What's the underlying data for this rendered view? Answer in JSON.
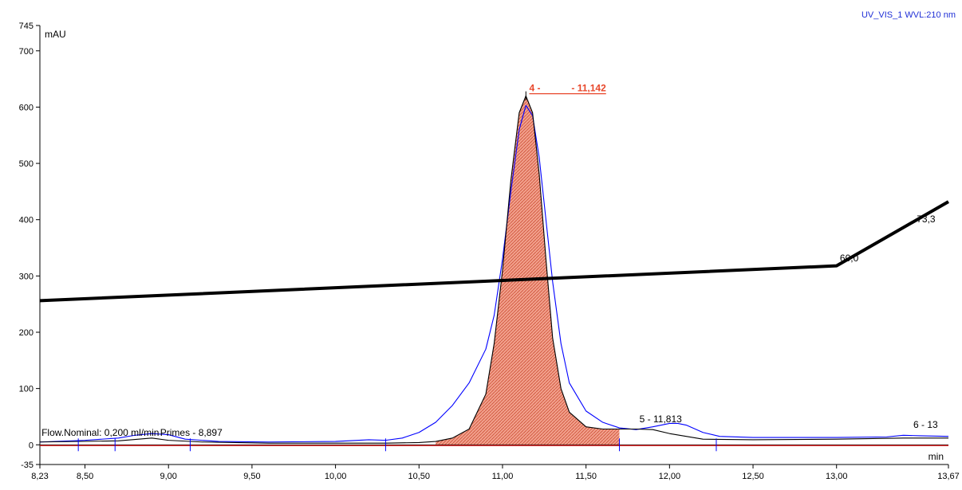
{
  "chart_data": {
    "type": "line",
    "title": "UV_VIS_1 WVL:210 nm",
    "xlabel": "min",
    "ylabel": "mAU",
    "xlim": [
      8.23,
      13.67
    ],
    "ylim": [
      -35,
      745
    ],
    "x_ticks": [
      {
        "value": 8.23,
        "label": "8,23"
      },
      {
        "value": 8.5,
        "label": "8,50"
      },
      {
        "value": 9.0,
        "label": "9,00"
      },
      {
        "value": 9.5,
        "label": "9,50"
      },
      {
        "value": 10.0,
        "label": "10,00"
      },
      {
        "value": 10.5,
        "label": "10,50"
      },
      {
        "value": 11.0,
        "label": "11,00"
      },
      {
        "value": 11.5,
        "label": "11,50"
      },
      {
        "value": 12.0,
        "label": "12,00"
      },
      {
        "value": 12.5,
        "label": "12,50"
      },
      {
        "value": 13.0,
        "label": "13,00"
      },
      {
        "value": 13.67,
        "label": "13,67"
      }
    ],
    "y_ticks": [
      {
        "value": 745,
        "label": "745"
      },
      {
        "value": 700,
        "label": "700"
      },
      {
        "value": 600,
        "label": "600"
      },
      {
        "value": 500,
        "label": "500"
      },
      {
        "value": 400,
        "label": "400"
      },
      {
        "value": 300,
        "label": "300"
      },
      {
        "value": 200,
        "label": "200"
      },
      {
        "value": 100,
        "label": "100"
      },
      {
        "value": 0,
        "label": "0"
      },
      {
        "value": -35,
        "label": "-35"
      }
    ],
    "series": [
      {
        "color": "#0000ff",
        "x": [
          8.23,
          8.5,
          8.7,
          8.8,
          8.9,
          9.0,
          9.1,
          9.3,
          9.6,
          10.0,
          10.2,
          10.3,
          10.4,
          10.5,
          10.6,
          10.7,
          10.8,
          10.9,
          10.95,
          11.0,
          11.05,
          11.1,
          11.14,
          11.18,
          11.22,
          11.26,
          11.3,
          11.35,
          11.4,
          11.5,
          11.6,
          11.7,
          11.8,
          11.9,
          12.0,
          12.05,
          12.1,
          12.2,
          12.3,
          12.5,
          13.0,
          13.3,
          13.4,
          13.5,
          13.67
        ],
        "y": [
          5,
          8,
          12,
          17,
          20,
          18,
          10,
          6,
          5,
          6,
          9,
          8,
          12,
          22,
          40,
          70,
          110,
          170,
          230,
          330,
          450,
          560,
          603,
          585,
          510,
          400,
          290,
          180,
          110,
          60,
          40,
          30,
          27,
          32,
          38,
          38,
          35,
          22,
          15,
          13,
          13,
          14,
          17,
          16,
          15
        ]
      },
      {
        "color": "#000000",
        "x": [
          8.23,
          8.7,
          8.9,
          9.0,
          9.2,
          9.6,
          10.0,
          10.3,
          10.5,
          10.6,
          10.7,
          10.8,
          10.9,
          10.95,
          11.0,
          11.05,
          11.1,
          11.14,
          11.18,
          11.22,
          11.26,
          11.3,
          11.35,
          11.4,
          11.5,
          11.6,
          11.7,
          11.8,
          11.9,
          12.0,
          12.2,
          12.5,
          13.0,
          13.4,
          13.67
        ],
        "y": [
          5,
          7,
          12,
          8,
          5,
          3,
          3,
          3,
          4,
          6,
          12,
          28,
          90,
          180,
          310,
          470,
          590,
          620,
          590,
          480,
          330,
          190,
          100,
          58,
          32,
          28,
          28,
          28,
          27,
          20,
          10,
          9,
          10,
          12,
          12
        ]
      },
      {
        "color": "#000000",
        "thick": true,
        "x": [
          8.23,
          13.0,
          13.67
        ],
        "y": [
          256,
          318,
          432
        ]
      }
    ],
    "annotations": [
      {
        "text": "4 -",
        "x": 11.16,
        "y": 628
      },
      {
        "text": "- 11,142",
        "x": 11.62,
        "y": 628
      },
      {
        "text": "Flow.Nominal: 0,200 ml/min",
        "x": 8.24,
        "y": 16
      },
      {
        "text": "Primes - 8,897",
        "x": 8.95,
        "y": 16
      },
      {
        "text": "5 - 11,813",
        "x": 11.82,
        "y": 40
      },
      {
        "text": "6 - 13",
        "x": 13.46,
        "y": 30
      },
      {
        "text": "60,0",
        "x": 13.02,
        "y": 326
      },
      {
        "text": "73,3",
        "x": 13.48,
        "y": 395
      }
    ]
  }
}
